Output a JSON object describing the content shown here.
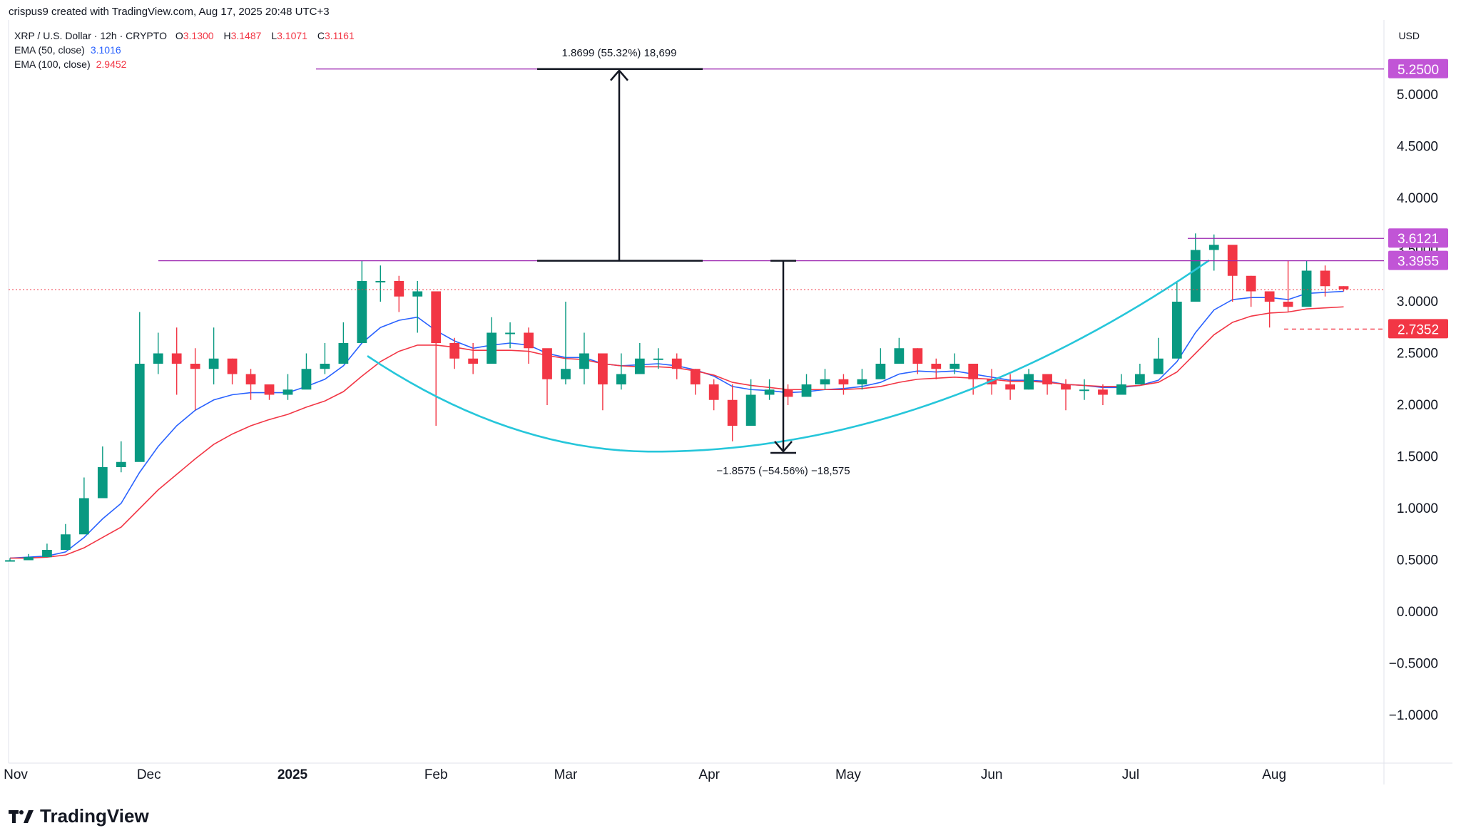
{
  "header": {
    "credit": "crispus9 created with TradingView.com, Aug 17, 2025 20:48 UTC+3"
  },
  "legend": {
    "symbol": "XRP / U.S. Dollar · 12h · CRYPTO",
    "o_label": "O",
    "o_value": "3.1300",
    "h_label": "H",
    "h_value": "3.1487",
    "l_label": "L",
    "l_value": "3.1071",
    "c_label": "C",
    "c_value": "3.1161",
    "ema50_label": "EMA (50, close)",
    "ema50_value": "3.1016",
    "ema100_label": "EMA (100, close)",
    "ema100_value": "2.9452"
  },
  "currency": "USD",
  "brand": {
    "name": "TradingView",
    "icon": "tradingview-logo-icon"
  },
  "colors": {
    "up": "#089981",
    "down": "#f23645",
    "ema50": "#2962ff",
    "ema100": "#f23645",
    "level": "#9c27b0",
    "level_bg": "#c155d6",
    "arc": "#26c6da",
    "price_line": "#f23645"
  },
  "chart_data": {
    "type": "line",
    "title": "XRP / U.S. Dollar · 12h · CRYPTO",
    "ylabel": "USD",
    "ylim": [
      -1.0,
      5.25
    ],
    "x_ticks": [
      "Nov",
      "Dec",
      "2025",
      "Feb",
      "Mar",
      "Apr",
      "May",
      "Jun",
      "Jul",
      "Aug"
    ],
    "y_ticks": [
      "5.0000",
      "4.5000",
      "4.0000",
      "3.5000",
      "3.0000",
      "2.5000",
      "2.0000",
      "1.5000",
      "1.0000",
      "0.5000",
      "0.0000",
      "−0.5000",
      "−1.0000"
    ],
    "grid": false,
    "series": [
      {
        "name": "XRP / U.S. Dollar",
        "style": "candlestick",
        "x": [
          "2024-11-01",
          "2024-11-05",
          "2024-11-09",
          "2024-11-13",
          "2024-11-17",
          "2024-11-21",
          "2024-11-25",
          "2024-11-29",
          "2024-12-03",
          "2024-12-07",
          "2024-12-11",
          "2024-12-15",
          "2024-12-19",
          "2024-12-23",
          "2024-12-27",
          "2024-12-31",
          "2025-01-04",
          "2025-01-08",
          "2025-01-12",
          "2025-01-16",
          "2025-01-20",
          "2025-01-24",
          "2025-01-28",
          "2025-02-01",
          "2025-02-05",
          "2025-02-09",
          "2025-02-13",
          "2025-02-17",
          "2025-02-21",
          "2025-02-25",
          "2025-03-01",
          "2025-03-05",
          "2025-03-09",
          "2025-03-13",
          "2025-03-17",
          "2025-03-21",
          "2025-03-25",
          "2025-03-29",
          "2025-04-02",
          "2025-04-06",
          "2025-04-10",
          "2025-04-14",
          "2025-04-18",
          "2025-04-22",
          "2025-04-26",
          "2025-04-30",
          "2025-05-04",
          "2025-05-08",
          "2025-05-12",
          "2025-05-16",
          "2025-05-20",
          "2025-05-24",
          "2025-05-28",
          "2025-06-01",
          "2025-06-05",
          "2025-06-09",
          "2025-06-13",
          "2025-06-17",
          "2025-06-21",
          "2025-06-25",
          "2025-06-29",
          "2025-07-03",
          "2025-07-07",
          "2025-07-11",
          "2025-07-15",
          "2025-07-19",
          "2025-07-23",
          "2025-07-27",
          "2025-07-31",
          "2025-08-04",
          "2025-08-08",
          "2025-08-12",
          "2025-08-16"
        ],
        "close": [
          0.5,
          0.53,
          0.6,
          0.75,
          1.1,
          1.4,
          1.45,
          2.4,
          2.5,
          2.4,
          2.35,
          2.45,
          2.3,
          2.2,
          2.1,
          2.15,
          2.35,
          2.4,
          2.6,
          3.2,
          3.2,
          3.05,
          3.1,
          2.6,
          2.45,
          2.4,
          2.7,
          2.7,
          2.55,
          2.25,
          2.35,
          2.5,
          2.2,
          2.3,
          2.45,
          2.45,
          2.35,
          2.2,
          2.05,
          1.8,
          2.1,
          2.15,
          2.08,
          2.2,
          2.25,
          2.2,
          2.25,
          2.4,
          2.55,
          2.4,
          2.35,
          2.4,
          2.25,
          2.2,
          2.15,
          2.3,
          2.2,
          2.15,
          2.15,
          2.1,
          2.2,
          2.3,
          2.45,
          3.0,
          3.5,
          3.55,
          3.25,
          3.1,
          3.0,
          2.95,
          3.3,
          3.15,
          3.12
        ],
        "high": [
          0.52,
          0.56,
          0.66,
          0.85,
          1.3,
          1.6,
          1.65,
          2.9,
          2.7,
          2.75,
          2.55,
          2.75,
          2.45,
          2.35,
          2.2,
          2.3,
          2.5,
          2.6,
          2.8,
          3.4,
          3.35,
          3.25,
          3.2,
          2.7,
          2.65,
          2.6,
          2.85,
          2.8,
          2.75,
          2.45,
          3.0,
          2.7,
          2.4,
          2.5,
          2.6,
          2.55,
          2.5,
          2.35,
          2.25,
          2.2,
          2.25,
          2.25,
          2.2,
          2.3,
          2.35,
          2.3,
          2.35,
          2.55,
          2.65,
          2.55,
          2.45,
          2.5,
          2.35,
          2.35,
          2.3,
          2.35,
          2.3,
          2.25,
          2.25,
          2.2,
          2.3,
          2.4,
          2.65,
          3.2,
          3.66,
          3.65,
          3.4,
          3.25,
          3.1,
          3.4,
          3.4,
          3.35,
          3.15
        ],
        "low": [
          0.49,
          0.51,
          0.56,
          0.7,
          1.0,
          1.3,
          1.35,
          2.1,
          2.3,
          2.1,
          1.95,
          2.2,
          2.2,
          2.05,
          2.05,
          2.05,
          2.25,
          2.3,
          2.5,
          3.0,
          3.0,
          2.9,
          2.7,
          1.8,
          2.35,
          2.3,
          2.5,
          2.55,
          2.4,
          2.0,
          2.2,
          2.2,
          1.95,
          2.15,
          2.3,
          2.35,
          2.25,
          2.1,
          1.95,
          1.65,
          1.9,
          2.05,
          2.0,
          2.1,
          2.15,
          2.1,
          2.15,
          2.3,
          2.45,
          2.3,
          2.25,
          2.3,
          2.1,
          2.1,
          2.05,
          2.15,
          2.1,
          1.95,
          2.05,
          2.0,
          2.15,
          2.25,
          2.35,
          2.9,
          3.2,
          3.3,
          3.0,
          2.95,
          2.75,
          2.9,
          3.1,
          3.05,
          3.1
        ]
      },
      {
        "name": "EMA (50, close)",
        "x_ref": "candles",
        "values": [
          0.52,
          0.53,
          0.54,
          0.58,
          0.72,
          0.9,
          1.05,
          1.35,
          1.6,
          1.8,
          1.95,
          2.05,
          2.1,
          2.12,
          2.12,
          2.12,
          2.18,
          2.25,
          2.38,
          2.6,
          2.75,
          2.82,
          2.85,
          2.72,
          2.62,
          2.55,
          2.58,
          2.6,
          2.58,
          2.5,
          2.46,
          2.46,
          2.4,
          2.38,
          2.39,
          2.4,
          2.38,
          2.34,
          2.28,
          2.18,
          2.15,
          2.14,
          2.12,
          2.13,
          2.15,
          2.16,
          2.18,
          2.22,
          2.3,
          2.33,
          2.32,
          2.33,
          2.3,
          2.27,
          2.24,
          2.24,
          2.23,
          2.2,
          2.19,
          2.17,
          2.17,
          2.19,
          2.24,
          2.42,
          2.7,
          2.92,
          3.02,
          3.04,
          3.04,
          3.02,
          3.08,
          3.09,
          3.1
        ]
      },
      {
        "name": "EMA (100, close)",
        "x_ref": "candles",
        "values": [
          0.52,
          0.52,
          0.53,
          0.55,
          0.62,
          0.72,
          0.82,
          1.0,
          1.18,
          1.33,
          1.48,
          1.62,
          1.72,
          1.8,
          1.86,
          1.91,
          1.98,
          2.04,
          2.13,
          2.28,
          2.42,
          2.52,
          2.58,
          2.58,
          2.56,
          2.53,
          2.53,
          2.53,
          2.52,
          2.48,
          2.45,
          2.44,
          2.4,
          2.38,
          2.37,
          2.37,
          2.36,
          2.33,
          2.29,
          2.22,
          2.19,
          2.17,
          2.15,
          2.15,
          2.15,
          2.15,
          2.16,
          2.18,
          2.22,
          2.25,
          2.26,
          2.27,
          2.26,
          2.25,
          2.23,
          2.23,
          2.22,
          2.2,
          2.19,
          2.18,
          2.18,
          2.19,
          2.22,
          2.32,
          2.5,
          2.68,
          2.8,
          2.86,
          2.89,
          2.9,
          2.93,
          2.94,
          2.95
        ]
      }
    ],
    "price_levels": [
      {
        "label": "5.2500",
        "value": 5.25
      },
      {
        "label": "3.6121",
        "value": 3.6121
      },
      {
        "label": "3.3955",
        "value": 3.3955
      },
      {
        "label": "2.7352",
        "value": 2.7352
      }
    ],
    "annotations": [
      {
        "text": "1.8699 (55.32%) 18,699",
        "from": 3.3955,
        "to": 5.25
      },
      {
        "text": "−1.8575 (−54.56%) −18,575",
        "from": 3.3955,
        "to": 1.538
      }
    ],
    "last_price": 3.1161
  }
}
